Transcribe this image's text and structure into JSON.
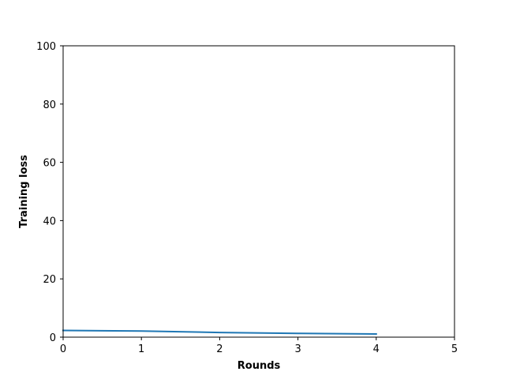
{
  "chart_data": {
    "type": "line",
    "title": "",
    "xlabel": "Rounds",
    "ylabel": "Training loss",
    "xlim": [
      0,
      5
    ],
    "ylim": [
      0,
      100
    ],
    "x_ticks": [
      "0",
      "1",
      "2",
      "3",
      "4",
      "5"
    ],
    "y_ticks": [
      "0",
      "20",
      "40",
      "60",
      "80",
      "100"
    ],
    "grid": false,
    "legend": "none",
    "series": [
      {
        "color": "#1f77b4",
        "x": [
          0,
          1,
          2,
          3,
          4
        ],
        "y": [
          2.3,
          2.1,
          1.6,
          1.3,
          1.1
        ]
      }
    ]
  }
}
